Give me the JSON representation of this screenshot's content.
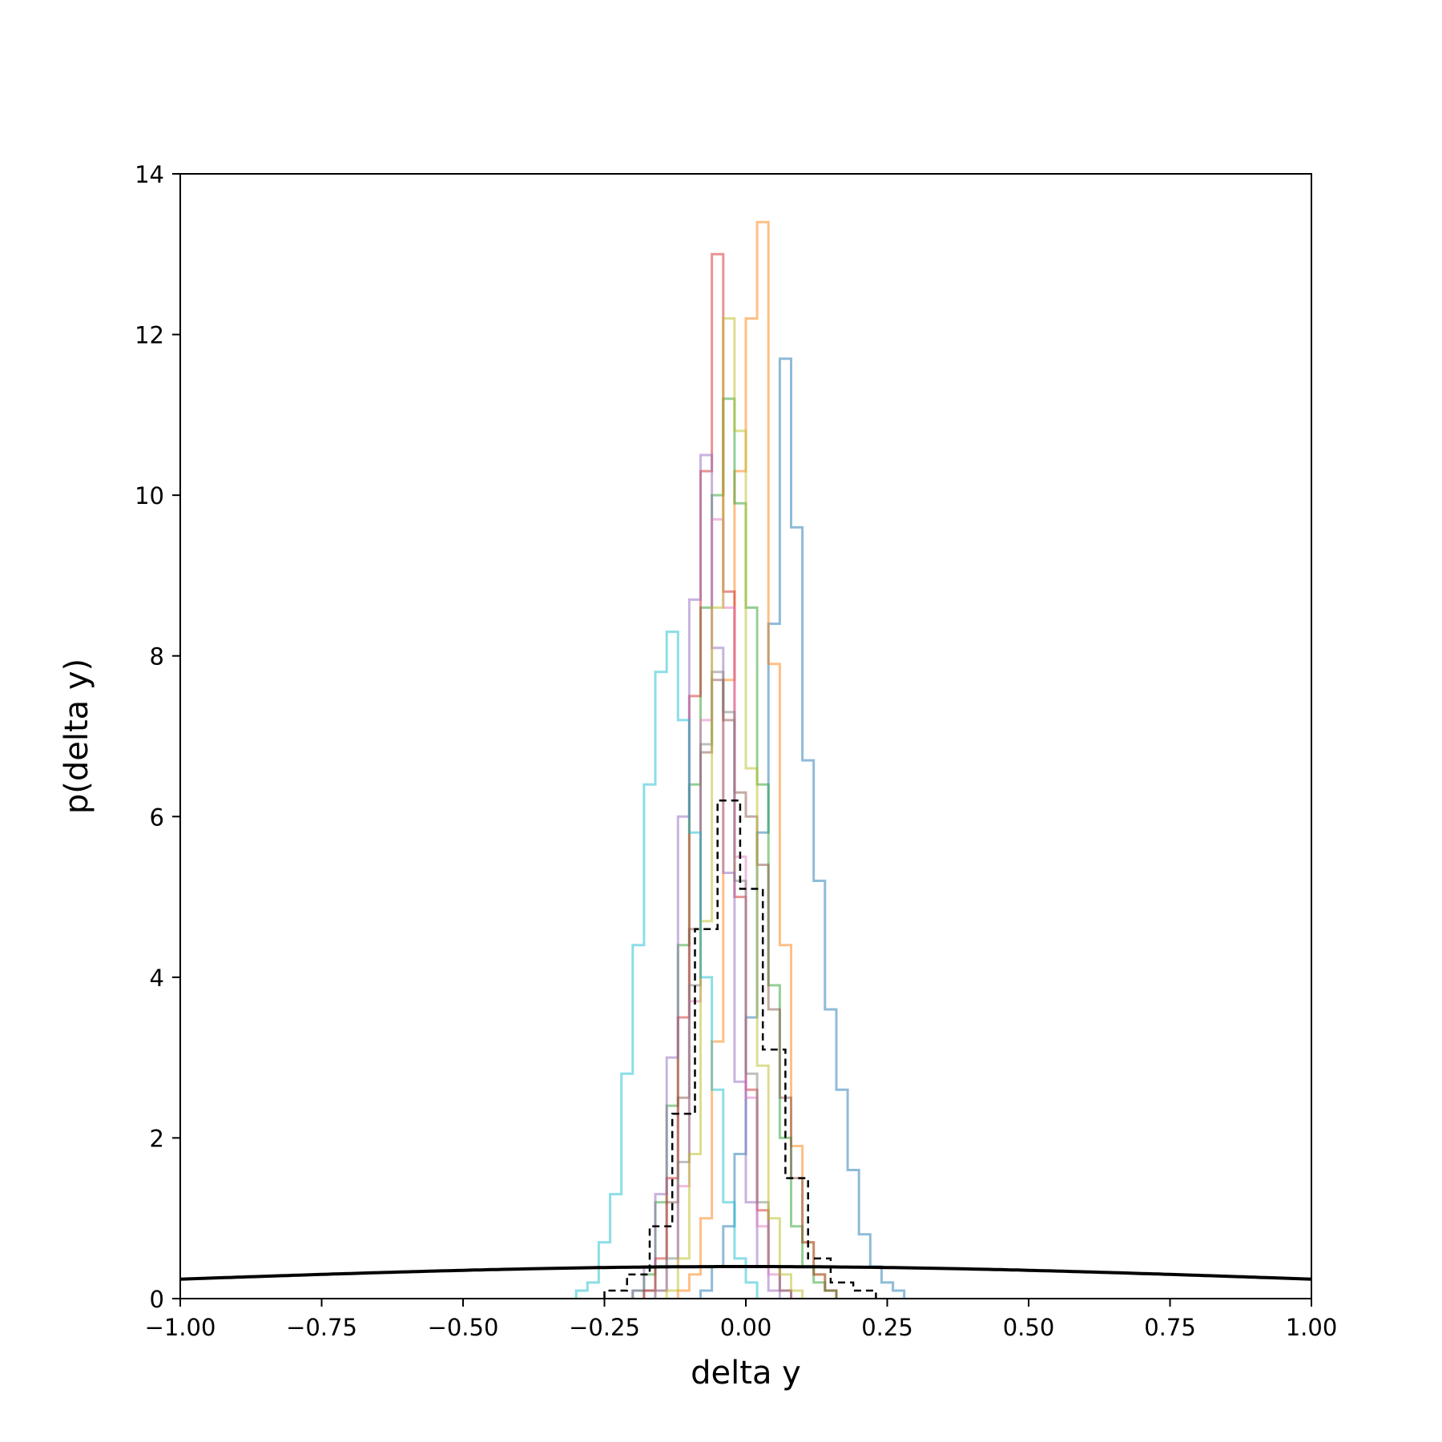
{
  "chart_data": {
    "type": "histogram",
    "xlabel": "delta y",
    "ylabel": "p(delta y)",
    "xlim": [
      -1.0,
      1.0
    ],
    "ylim": [
      0,
      14
    ],
    "xticks": [
      -1.0,
      -0.75,
      -0.5,
      -0.25,
      0.0,
      0.25,
      0.5,
      0.75,
      1.0
    ],
    "xtick_labels": [
      "−1.00",
      "−0.75",
      "−0.50",
      "−0.25",
      "0.00",
      "0.25",
      "0.50",
      "0.75",
      "1.00"
    ],
    "yticks": [
      0,
      2,
      4,
      6,
      8,
      10,
      12,
      14
    ],
    "ytick_labels": [
      "0",
      "2",
      "4",
      "6",
      "8",
      "10",
      "12",
      "14"
    ],
    "grid": false,
    "legend": false,
    "hist_step_style": "step outlines, alpha 0.5",
    "series": [
      {
        "color": "#1f77b4",
        "bin_start": -0.08,
        "bin_width": 0.02,
        "values": [
          0.1,
          0.4,
          0.9,
          1.8,
          3.5,
          5.8,
          8.4,
          11.7,
          9.6,
          6.7,
          5.2,
          3.6,
          2.6,
          1.6,
          0.8,
          0.4,
          0.2,
          0.1
        ]
      },
      {
        "color": "#ff7f0e",
        "bin_start": -0.12,
        "bin_width": 0.02,
        "values": [
          0.1,
          0.3,
          1.0,
          3.2,
          7.7,
          10.3,
          12.2,
          13.4,
          7.9,
          4.4,
          1.9,
          0.7,
          0.3,
          0.1
        ]
      },
      {
        "color": "#2ca02c",
        "bin_start": -0.2,
        "bin_width": 0.02,
        "values": [
          0.1,
          0.3,
          1.2,
          2.4,
          4.4,
          6.4,
          8.6,
          10.0,
          11.2,
          9.9,
          8.6,
          6.4,
          3.9,
          2.0,
          0.9,
          0.4,
          0.2,
          0.1
        ]
      },
      {
        "color": "#d62728",
        "bin_start": -0.18,
        "bin_width": 0.02,
        "values": [
          0.1,
          0.5,
          1.5,
          3.5,
          7.5,
          10.3,
          13.0,
          8.8,
          5.0,
          2.6,
          1.1,
          0.4,
          0.1
        ]
      },
      {
        "color": "#9467bd",
        "bin_start": -0.2,
        "bin_width": 0.02,
        "values": [
          0.1,
          0.4,
          1.3,
          3.0,
          6.0,
          8.7,
          10.5,
          8.1,
          5.3,
          2.7,
          1.2,
          0.4,
          0.1
        ]
      },
      {
        "color": "#8c564b",
        "bin_start": -0.18,
        "bin_width": 0.02,
        "values": [
          0.1,
          0.4,
          1.2,
          2.5,
          4.6,
          6.8,
          7.7,
          7.2,
          6.3,
          6.0,
          5.4,
          3.6,
          2.5,
          1.5,
          0.7,
          0.3,
          0.1
        ]
      },
      {
        "color": "#e377c2",
        "bin_start": -0.16,
        "bin_width": 0.02,
        "values": [
          0.1,
          0.4,
          1.4,
          3.7,
          7.2,
          9.7,
          8.6,
          5.5,
          2.5,
          0.9,
          0.3,
          0.1
        ]
      },
      {
        "color": "#7f7f7f",
        "bin_start": -0.16,
        "bin_width": 0.02,
        "values": [
          0.1,
          0.5,
          1.7,
          3.9,
          6.9,
          7.8,
          7.3,
          5.2,
          2.8,
          1.2,
          0.4,
          0.1
        ]
      },
      {
        "color": "#bcbd22",
        "bin_start": -0.14,
        "bin_width": 0.02,
        "values": [
          0.1,
          0.5,
          1.8,
          4.7,
          8.6,
          12.2,
          10.8,
          6.6,
          2.9,
          1.0,
          0.3,
          0.1
        ]
      },
      {
        "color": "#17becf",
        "bin_start": -0.3,
        "bin_width": 0.02,
        "values": [
          0.1,
          0.2,
          0.7,
          1.3,
          2.8,
          4.4,
          6.4,
          7.8,
          8.3,
          7.2,
          5.8,
          4.0,
          2.6,
          1.2,
          0.5,
          0.2
        ]
      },
      {
        "color": "#000000",
        "dashed": true,
        "bin_start": -0.25,
        "bin_width": 0.04,
        "values": [
          0.1,
          0.3,
          0.9,
          2.3,
          4.6,
          6.2,
          5.1,
          3.1,
          1.5,
          0.5,
          0.2,
          0.1
        ]
      }
    ],
    "prior_curve": {
      "type": "gaussian",
      "mean": 0.0,
      "sigma": 1.0,
      "color": "#000000"
    }
  }
}
